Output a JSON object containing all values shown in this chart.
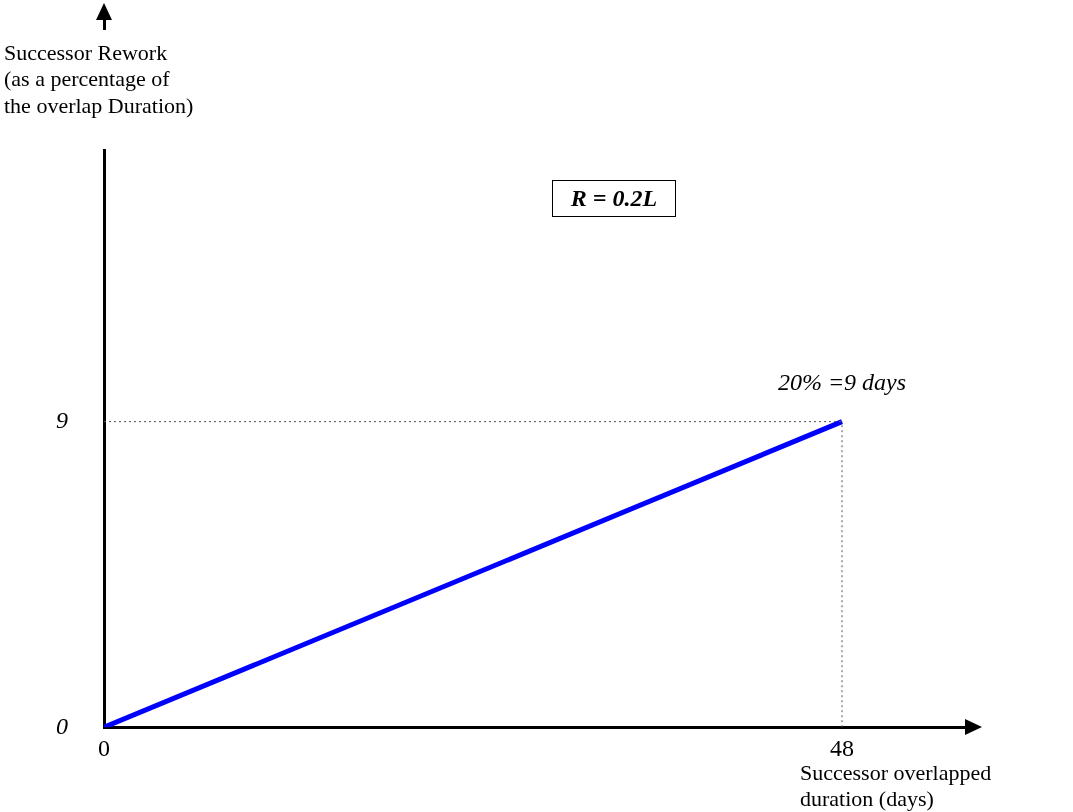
{
  "chart_data": {
    "type": "line",
    "xlabel": "Successor overlapped duration (days)",
    "ylabel": "Successor Rework (as a percentage of the overlap Duration)",
    "x": [
      0,
      48
    ],
    "series": [
      {
        "color": "#0000ff",
        "values": [
          0,
          9
        ]
      }
    ],
    "xlim": [
      0,
      56
    ],
    "ylim": [
      0,
      17
    ],
    "xticks": [
      0,
      48
    ],
    "yticks": [
      0,
      9
    ],
    "ref_lines": [
      {
        "axis": "y",
        "value": 9,
        "color": "#555555",
        "line_style": "dotted"
      },
      {
        "axis": "x",
        "value": 48,
        "color": "#555555",
        "line_style": "dotted"
      }
    ],
    "annotations": [
      "R = 0.2L",
      {
        "text": "20% =9 days",
        "x": 48,
        "y": 9
      }
    ],
    "grid": false,
    "legend": false,
    "marker": "none",
    "line_style": "solid"
  }
}
